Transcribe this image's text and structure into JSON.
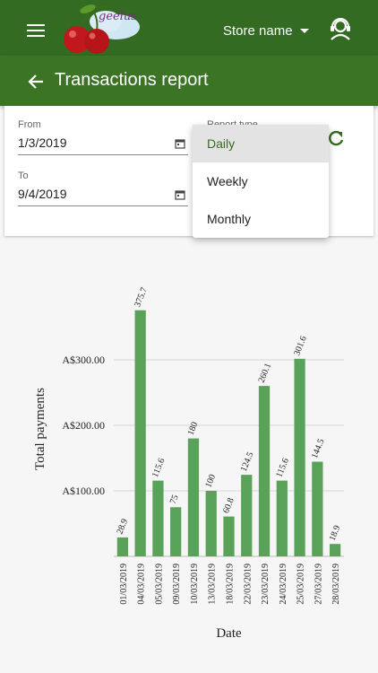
{
  "header": {
    "logo_text": "geelus",
    "store_label": "Store name"
  },
  "titlebar": {
    "title": "Transactions report"
  },
  "filters": {
    "from_label": "From",
    "from_value": "1/3/2019",
    "to_label": "To",
    "to_value": "9/4/2019",
    "report_type_label": "Report type"
  },
  "dropdown": {
    "options": [
      "Daily",
      "Weekly",
      "Monthly"
    ],
    "selected": "Daily"
  },
  "colors": {
    "primary": "#336b22",
    "bar": "#5aa25a"
  },
  "chart_data": {
    "type": "bar",
    "categories": [
      "01/03/2019",
      "04/03/2019",
      "05/03/2019",
      "09/03/2019",
      "10/03/2019",
      "13/03/2019",
      "18/03/2019",
      "22/03/2019",
      "23/03/2019",
      "24/03/2019",
      "25/03/2019",
      "27/03/2019",
      "28/03/2019"
    ],
    "values": [
      28.9,
      375.7,
      115.6,
      75,
      180,
      100,
      60.8,
      124.5,
      260.1,
      115.6,
      301.6,
      144.5,
      18.9
    ],
    "value_labels": [
      "28.9",
      "375.7",
      "115.6",
      "75",
      "180",
      "100",
      "60.8",
      "124.5",
      "260.1",
      "115.6",
      "301.6",
      "144.5",
      "18.9"
    ],
    "xlabel": "Date",
    "ylabel": "Total payments",
    "yticks": [
      100,
      200,
      300
    ],
    "ytick_labels": [
      "A$100.00",
      "A$200.00",
      "A$300.00"
    ],
    "ylim": [
      0,
      400
    ],
    "grid": true
  }
}
